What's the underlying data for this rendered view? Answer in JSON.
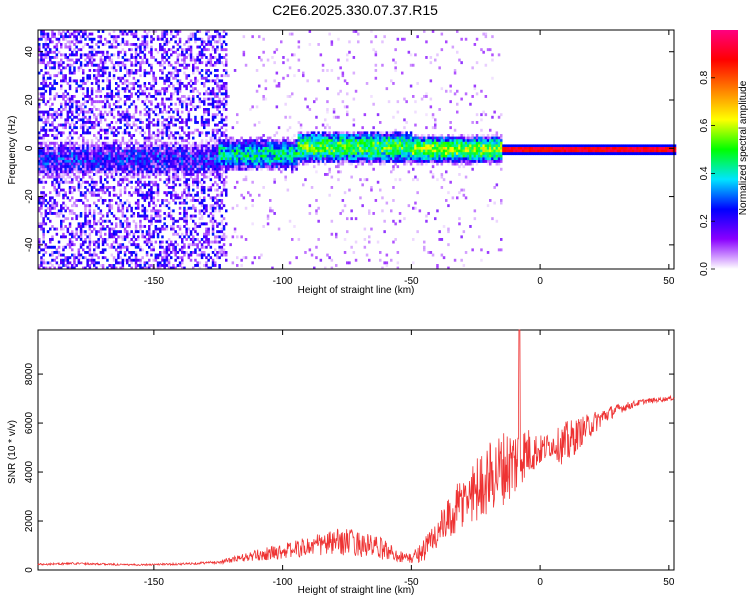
{
  "title": "C2E6.2025.330.07.37.R15",
  "chart_data": [
    {
      "type": "heatmap",
      "title": "C2E6.2025.330.07.37.R15",
      "xlabel": "Height of straight line (km)",
      "ylabel": "Frequency (Hz)",
      "xlim": [
        -195,
        52
      ],
      "ylim": [
        -50,
        49
      ],
      "xticks": [
        -150,
        -100,
        -50,
        0,
        50
      ],
      "yticks": [
        -40,
        -20,
        0,
        20,
        40
      ],
      "xtick_labels": [
        "-150",
        "-100",
        "-50",
        "0",
        "50"
      ],
      "ytick_labels": [
        "-40",
        "-20",
        "0",
        "20",
        "40"
      ],
      "colorbar": {
        "label": "Normalized spectral amplitude",
        "range": [
          0,
          1
        ],
        "ticks": [
          0.0,
          0.2,
          0.4,
          0.6,
          0.8
        ],
        "tick_labels": [
          "0.0",
          "0.2",
          "0.4",
          "0.6",
          "0.8"
        ],
        "colors": [
          "#ffffff",
          "#8a00ff",
          "#0000ff",
          "#00e5ff",
          "#00ff00",
          "#ffff00",
          "#ff8000",
          "#ff0000",
          "#ff0080"
        ]
      },
      "signal_band": {
        "segments": [
          {
            "x_from": -195,
            "x_to": -125,
            "center_hz": -4,
            "halfwidth_hz": 8,
            "level": 0.22
          },
          {
            "x_from": -125,
            "x_to": -95,
            "center_hz": -2,
            "halfwidth_hz": 7,
            "level": 0.4
          },
          {
            "x_from": -95,
            "x_to": -50,
            "center_hz": 1,
            "halfwidth_hz": 7,
            "level": 0.5
          },
          {
            "x_from": -50,
            "x_to": -15,
            "center_hz": 0,
            "halfwidth_hz": 6,
            "level": 0.55
          },
          {
            "x_from": -15,
            "x_to": 52,
            "center_hz": 0,
            "halfwidth_hz": 2,
            "level": 0.95
          }
        ]
      }
    },
    {
      "type": "line",
      "xlabel": "Height of straight line (km)",
      "ylabel": "SNR (10 * v/v)",
      "xlim": [
        -195,
        52
      ],
      "ylim": [
        0,
        9800
      ],
      "xticks": [
        -150,
        -100,
        -50,
        0,
        50
      ],
      "yticks": [
        0,
        2000,
        4000,
        6000,
        8000
      ],
      "xtick_labels": [
        "-150",
        "-100",
        "-50",
        "0",
        "50"
      ],
      "ytick_labels": [
        "0",
        "2000",
        "4000",
        "6000",
        "8000"
      ],
      "series": [
        {
          "name": "SNR",
          "color": "#ee3333",
          "x": [
            -195,
            -180,
            -160,
            -140,
            -125,
            -115,
            -105,
            -95,
            -85,
            -75,
            -65,
            -60,
            -55,
            -50,
            -45,
            -40,
            -35,
            -30,
            -25,
            -20,
            -15,
            -10,
            -8,
            -5,
            0,
            5,
            10,
            15,
            20,
            25,
            30,
            40,
            52
          ],
          "y": [
            220,
            260,
            200,
            230,
            300,
            450,
            600,
            750,
            900,
            1000,
            800,
            700,
            500,
            400,
            700,
            1300,
            1800,
            2400,
            2900,
            3300,
            3700,
            3900,
            4300,
            4500,
            4700,
            5000,
            4800,
            5400,
            5800,
            6200,
            6500,
            6850,
            7000
          ],
          "noise": [
            60,
            60,
            50,
            60,
            80,
            250,
            400,
            500,
            700,
            800,
            700,
            600,
            350,
            300,
            700,
            1000,
            1300,
            1700,
            1900,
            2100,
            2200,
            2200,
            1800,
            1500,
            900,
            700,
            1400,
            900,
            700,
            500,
            300,
            150,
            120
          ]
        }
      ]
    }
  ]
}
